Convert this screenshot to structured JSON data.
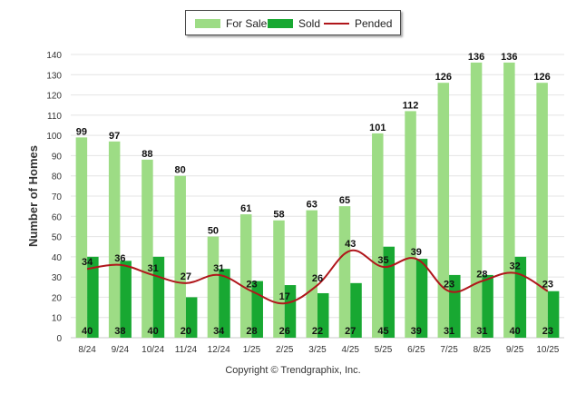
{
  "legend": {
    "for_sale_label": "For Sale",
    "sold_label": "Sold",
    "pended_label": "Pended"
  },
  "copyright": "Copyright © Trendgraphix, Inc.",
  "colors": {
    "for_sale": "#9ddc85",
    "sold": "#18a832",
    "pended": "#b0161b",
    "grid": "#e4e4e4",
    "axis_text": "#333333"
  },
  "chart_data": {
    "type": "bar",
    "title": "",
    "xlabel": "",
    "ylabel": "Number of Homes",
    "ylim": [
      0,
      140
    ],
    "yticks": [
      0,
      10,
      20,
      30,
      40,
      50,
      60,
      70,
      80,
      90,
      100,
      110,
      120,
      130,
      140
    ],
    "categories": [
      "8/24",
      "9/24",
      "10/24",
      "11/24",
      "12/24",
      "1/25",
      "2/25",
      "3/25",
      "4/25",
      "5/25",
      "6/25",
      "7/25",
      "8/25",
      "9/25",
      "10/25"
    ],
    "series": [
      {
        "name": "For Sale",
        "kind": "bar",
        "values": [
          99,
          97,
          88,
          80,
          50,
          61,
          58,
          63,
          65,
          101,
          112,
          126,
          136,
          136,
          126
        ]
      },
      {
        "name": "Sold",
        "kind": "bar",
        "values": [
          40,
          38,
          40,
          20,
          34,
          28,
          26,
          22,
          27,
          45,
          39,
          31,
          31,
          40,
          23
        ]
      },
      {
        "name": "Pended",
        "kind": "line",
        "values": [
          34,
          36,
          31,
          27,
          31,
          23,
          17,
          26,
          43,
          35,
          39,
          23,
          28,
          32,
          23
        ]
      }
    ]
  }
}
